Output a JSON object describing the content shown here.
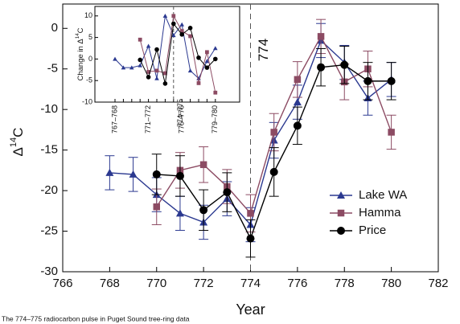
{
  "chart_data": [
    {
      "type": "line",
      "xlabel": "Year",
      "ylabel": {
        "main": "Δ",
        "sup": "14",
        "end": "C"
      },
      "caption": "The 774–775 radiocarbon pulse in Puget Sound tree-ring data",
      "annotation": {
        "text": "774",
        "x": 774
      },
      "xlim": [
        766,
        782
      ],
      "xticks": [
        766,
        768,
        770,
        772,
        774,
        776,
        778,
        780,
        782
      ],
      "ylim": [
        -30,
        3
      ],
      "yticks": [
        -30,
        -25,
        -20,
        -15,
        -10,
        -5,
        0
      ],
      "legend": "lower-right",
      "x": [
        768,
        769,
        770,
        771,
        772,
        773,
        774,
        775,
        776,
        777,
        778,
        779,
        780
      ],
      "series": [
        {
          "name": "Lake WA",
          "color": "#2b3990",
          "marker": "triangle",
          "values": [
            -17.8,
            -18.0,
            -20.5,
            -22.8,
            -23.9,
            -21.0,
            -24.2,
            -13.8,
            -9.1,
            -1.5,
            -4.2,
            -8.6,
            -6.3
          ],
          "errors": [
            2.1,
            2.1,
            2.1,
            2.1,
            2.1,
            2.1,
            2.1,
            2.2,
            2.1,
            2.1,
            2.1,
            2.1,
            2.1
          ]
        },
        {
          "name": "Hamma",
          "color": "#8c4b63",
          "marker": "square",
          "values": [
            null,
            null,
            -22.0,
            -17.5,
            -16.8,
            -19.5,
            -22.8,
            -12.8,
            -6.3,
            -1.0,
            -6.6,
            -5.0,
            -12.8
          ],
          "errors": [
            null,
            null,
            2.2,
            2.2,
            2.2,
            2.1,
            2.3,
            2.3,
            2.2,
            2.1,
            2.2,
            2.2,
            2.1
          ]
        },
        {
          "name": "Price",
          "color": "#000000",
          "marker": "circle",
          "values": [
            null,
            null,
            -18.0,
            -18.2,
            -22.4,
            -20.2,
            -25.9,
            -17.7,
            -12.0,
            -4.8,
            -4.5,
            -6.5,
            -6.5
          ],
          "errors": [
            null,
            null,
            2.5,
            2.5,
            2.5,
            2.4,
            2.3,
            3.0,
            2.3,
            2.3,
            2.3,
            2.3,
            2.3
          ]
        }
      ]
    },
    {
      "type": "line",
      "ylabel": {
        "main": "Change in Δ",
        "sup": "14",
        "end": "C"
      },
      "annotation": {
        "text": "774–775",
        "index": 7
      },
      "categories": [
        "767–768",
        null,
        null,
        null,
        "771–772",
        null,
        null,
        null,
        "775–776",
        null,
        null,
        null,
        "779–780"
      ],
      "ylim": [
        -10,
        12.2
      ],
      "yticks": [
        -10,
        -5,
        0,
        5,
        10
      ],
      "series": [
        {
          "name": "Lake WA",
          "color": "#2b3990",
          "marker": "triangle",
          "values": [
            0,
            -2,
            -2,
            -1.5,
            3,
            -4.5,
            10,
            5.5,
            8,
            -2.7,
            -4.5,
            -0.5,
            2.5
          ]
        },
        {
          "name": "Hamma",
          "color": "#8c4b63",
          "marker": "square",
          "values": [
            null,
            null,
            null,
            4.5,
            -3,
            -2.7,
            -3.3,
            10,
            6.5,
            5.3,
            -5.6,
            1.6,
            -7.8
          ]
        },
        {
          "name": "Price",
          "color": "#000000",
          "marker": "circle",
          "values": [
            null,
            null,
            null,
            -0.2,
            -4.2,
            2.2,
            -5.7,
            8.2,
            5.7,
            7.2,
            0.3,
            -2,
            0
          ]
        }
      ]
    }
  ]
}
